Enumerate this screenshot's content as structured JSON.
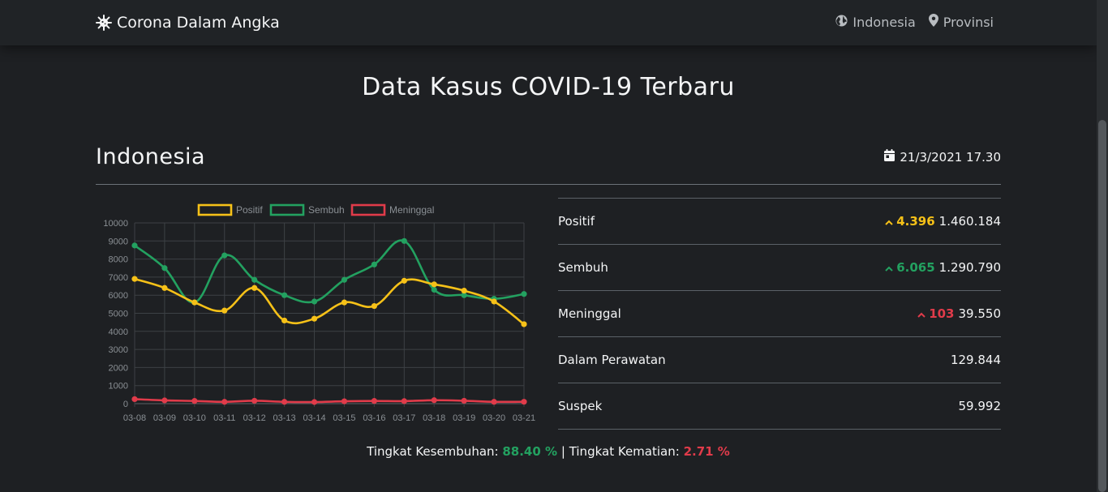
{
  "nav": {
    "brand": "Corona Dalam Angka",
    "links": [
      {
        "label": "Indonesia",
        "icon": "globe-icon"
      },
      {
        "label": "Provinsi",
        "icon": "map-marker-icon"
      }
    ]
  },
  "page_title": "Data Kasus COVID-19 Terbaru",
  "section": {
    "title": "Indonesia",
    "updated": "21/3/2021 17.30"
  },
  "stats": [
    {
      "label": "Positif",
      "delta": "4.396",
      "value": "1.460.184",
      "color": "#f6c118"
    },
    {
      "label": "Sembuh",
      "delta": "6.065",
      "value": "1.290.790",
      "color": "#23a160"
    },
    {
      "label": "Meninggal",
      "delta": "103",
      "value": "39.550",
      "color": "#e03b4a"
    },
    {
      "label": "Dalam Perawatan",
      "delta": "",
      "value": "129.844",
      "color": ""
    },
    {
      "label": "Suspek",
      "delta": "",
      "value": "59.992",
      "color": ""
    }
  ],
  "rates": {
    "recovery_label": "Tingkat Kesembuhan:",
    "recovery_value": "88.40 %",
    "separator": "|",
    "death_label": "Tingkat Kematian:",
    "death_value": "2.71 %"
  },
  "chart_data": {
    "type": "line",
    "categories": [
      "03-08",
      "03-09",
      "03-10",
      "03-11",
      "03-12",
      "03-13",
      "03-14",
      "03-15",
      "03-16",
      "03-17",
      "03-18",
      "03-19",
      "03-20",
      "03-21"
    ],
    "series": [
      {
        "name": "Positif",
        "color": "#f6c118",
        "values": [
          6900,
          6400,
          5600,
          5150,
          6400,
          4600,
          4700,
          5600,
          5400,
          6800,
          6600,
          6250,
          5650,
          4396
        ]
      },
      {
        "name": "Sembuh",
        "color": "#23a160",
        "values": [
          8750,
          7500,
          5600,
          8200,
          6850,
          6000,
          5650,
          6850,
          7700,
          9000,
          6300,
          6000,
          5800,
          6065
        ]
      },
      {
        "name": "Meninggal",
        "color": "#e03b4a",
        "values": [
          250,
          180,
          150,
          100,
          160,
          100,
          90,
          130,
          150,
          140,
          190,
          160,
          100,
          103
        ]
      }
    ],
    "yticks": [
      "0",
      "1000",
      "2000",
      "3000",
      "4000",
      "5000",
      "6000",
      "7000",
      "8000",
      "9000",
      "10000"
    ],
    "ylim": [
      0,
      10000
    ],
    "grid": true,
    "legend": "top"
  }
}
